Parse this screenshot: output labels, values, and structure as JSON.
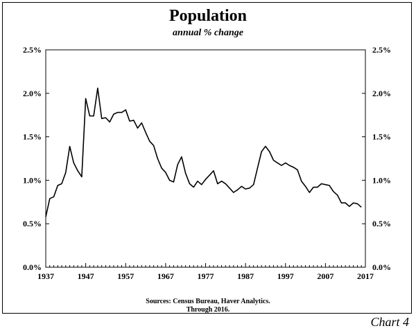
{
  "chart_data": {
    "type": "line",
    "title": "Population",
    "subtitle": "annual % change",
    "xlim": [
      1937,
      2017
    ],
    "ylim": [
      0,
      2.5
    ],
    "x_ticks": [
      "1937",
      "1947",
      "1957",
      "1967",
      "1977",
      "1987",
      "1997",
      "2007",
      "2017"
    ],
    "y_ticks_left": [
      "0.0%",
      "0.5%",
      "1.0%",
      "1.5%",
      "2.0%",
      "2.5%"
    ],
    "y_ticks_right": [
      "0.0%",
      "0.5%",
      "1.0%",
      "1.5%",
      "2.0%",
      "2.5%"
    ],
    "grid": false,
    "series": [
      {
        "x": [
          1937,
          1938,
          1939,
          1940,
          1941,
          1942,
          1943,
          1944,
          1945,
          1946,
          1947,
          1948,
          1949,
          1950,
          1951,
          1952,
          1953,
          1954,
          1955,
          1956,
          1957,
          1958,
          1959,
          1960,
          1961,
          1962,
          1963,
          1964,
          1965,
          1966,
          1967,
          1968,
          1969,
          1970,
          1971,
          1972,
          1973,
          1974,
          1975,
          1976,
          1977,
          1978,
          1979,
          1980,
          1981,
          1982,
          1983,
          1984,
          1985,
          1986,
          1987,
          1988,
          1989,
          1990,
          1991,
          1992,
          1993,
          1994,
          1995,
          1996,
          1997,
          1998,
          1999,
          2000,
          2001,
          2002,
          2003,
          2004,
          2005,
          2006,
          2007,
          2008,
          2009,
          2010,
          2011,
          2012,
          2013,
          2014,
          2015,
          2016
        ],
        "y": [
          0.58,
          0.79,
          0.81,
          0.94,
          0.96,
          1.09,
          1.39,
          1.2,
          1.11,
          1.04,
          1.94,
          1.74,
          1.74,
          2.06,
          1.71,
          1.72,
          1.67,
          1.76,
          1.78,
          1.78,
          1.81,
          1.68,
          1.69,
          1.6,
          1.66,
          1.55,
          1.45,
          1.4,
          1.25,
          1.14,
          1.09,
          1.0,
          0.98,
          1.18,
          1.27,
          1.08,
          0.96,
          0.92,
          0.99,
          0.95,
          1.01,
          1.06,
          1.11,
          0.96,
          0.99,
          0.96,
          0.91,
          0.86,
          0.89,
          0.93,
          0.9,
          0.91,
          0.95,
          1.14,
          1.33,
          1.39,
          1.33,
          1.23,
          1.2,
          1.17,
          1.2,
          1.17,
          1.15,
          1.12,
          0.99,
          0.93,
          0.86,
          0.92,
          0.92,
          0.96,
          0.95,
          0.94,
          0.87,
          0.83,
          0.74,
          0.74,
          0.7,
          0.74,
          0.73,
          0.69
        ]
      }
    ],
    "color": "#000000"
  },
  "notes": {
    "source_line1": "Sources: Census Bureau, Haver Analytics.",
    "source_line2": "Through 2016.",
    "chart_number": "Chart 4"
  }
}
